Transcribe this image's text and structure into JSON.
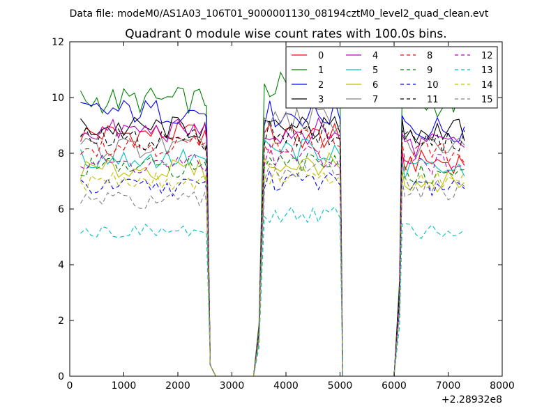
{
  "header": {
    "data_file_line": "Data file: modeM0/AS1A03_106T01_9000001130_08194cztM0_level2_quad_clean.evt"
  },
  "chart_data": {
    "type": "line",
    "title": "Quadrant 0 module wise count rates with 100.0s bins.",
    "xlabel": "",
    "ylabel": "",
    "x_offset_label": "+2.28932e8",
    "xlim": [
      0,
      8000
    ],
    "ylim": [
      0,
      12
    ],
    "x_ticks": [
      0,
      1000,
      2000,
      3000,
      4000,
      5000,
      6000,
      7000,
      8000
    ],
    "y_ticks": [
      0,
      2,
      4,
      6,
      8,
      10,
      12
    ],
    "grid": false,
    "legend": {
      "placement": "top-right",
      "columns": 4
    },
    "x": [
      200,
      300,
      400,
      500,
      600,
      700,
      800,
      900,
      1000,
      1100,
      1200,
      1300,
      1400,
      1500,
      1600,
      1700,
      1800,
      1900,
      2000,
      2100,
      2200,
      2300,
      2400,
      2500,
      2530,
      2600,
      2700,
      2800,
      2900,
      3000,
      3100,
      3200,
      3300,
      3400,
      3500,
      3550,
      3600,
      3700,
      3800,
      3900,
      4000,
      4100,
      4200,
      4300,
      4400,
      4500,
      4600,
      4700,
      4800,
      4900,
      5000,
      5050,
      5100,
      5200,
      5300,
      5400,
      5500,
      5600,
      5700,
      5800,
      5900,
      6000,
      6100,
      6150,
      6200,
      6300,
      6400,
      6500,
      6600,
      6700,
      6800,
      6900,
      7000,
      7100,
      7200,
      7300
    ],
    "segment_ends": [
      25,
      50,
      75
    ],
    "series": [
      {
        "name": "0",
        "color": "#ff0000",
        "dash": "solid",
        "levels": [
          8.7,
          8.6,
          7.7
        ]
      },
      {
        "name": "1",
        "color": "#008000",
        "dash": "solid",
        "levels": [
          9.9,
          10.4,
          9.8
        ]
      },
      {
        "name": "2",
        "color": "#0000ff",
        "dash": "solid",
        "levels": [
          9.5,
          9.4,
          8.9
        ]
      },
      {
        "name": "3",
        "color": "#000000",
        "dash": "solid",
        "levels": [
          8.9,
          8.9,
          8.8
        ]
      },
      {
        "name": "4",
        "color": "#bf00bf",
        "dash": "solid",
        "levels": [
          8.8,
          8.8,
          8.3
        ]
      },
      {
        "name": "5",
        "color": "#00bfbf",
        "dash": "solid",
        "levels": [
          7.8,
          8.1,
          7.4
        ]
      },
      {
        "name": "6",
        "color": "#bfbf00",
        "dash": "solid",
        "levels": [
          7.4,
          7.6,
          7.0
        ]
      },
      {
        "name": "7",
        "color": "#808080",
        "dash": "solid",
        "levels": [
          8.2,
          9.2,
          8.2
        ]
      },
      {
        "name": "8",
        "color": "#ff0000",
        "dash": "dashed",
        "levels": [
          8.3,
          8.4,
          8.0
        ]
      },
      {
        "name": "9",
        "color": "#008000",
        "dash": "dashed",
        "levels": [
          7.5,
          7.6,
          7.2
        ]
      },
      {
        "name": "10",
        "color": "#0000ff",
        "dash": "dashed",
        "levels": [
          6.8,
          7.0,
          6.8
        ]
      },
      {
        "name": "11",
        "color": "#000000",
        "dash": "dashed",
        "levels": [
          8.5,
          8.7,
          8.4
        ]
      },
      {
        "name": "12",
        "color": "#bf00bf",
        "dash": "dashed",
        "levels": [
          7.6,
          7.9,
          7.6
        ]
      },
      {
        "name": "13",
        "color": "#00bfbf",
        "dash": "dashed",
        "levels": [
          5.2,
          5.8,
          5.2
        ]
      },
      {
        "name": "14",
        "color": "#bfbf00",
        "dash": "dashed",
        "levels": [
          7.0,
          7.3,
          7.0
        ]
      },
      {
        "name": "15",
        "color": "#808080",
        "dash": "dashed",
        "levels": [
          6.3,
          7.4,
          6.7
        ]
      }
    ]
  }
}
